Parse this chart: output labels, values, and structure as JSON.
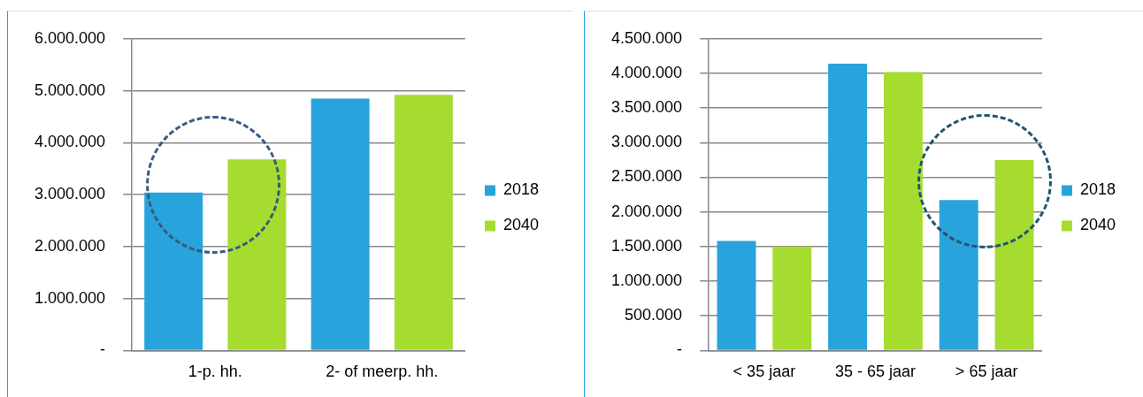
{
  "chart_data": [
    {
      "type": "bar",
      "categories": [
        "1-p. hh.",
        "2- of meerp. hh."
      ],
      "series": [
        {
          "name": "2018",
          "color": "#29a3dc",
          "values": [
            3040000,
            4850000
          ]
        },
        {
          "name": "2040",
          "color": "#a6dc30",
          "values": [
            3680000,
            4920000
          ]
        }
      ],
      "ylim": [
        0,
        6000000
      ],
      "yticks": [
        {
          "value": 0,
          "label": "-"
        },
        {
          "value": 1000000,
          "label": "1.000.000"
        },
        {
          "value": 2000000,
          "label": "2.000.000"
        },
        {
          "value": 3000000,
          "label": "3.000.000"
        },
        {
          "value": 4000000,
          "label": "4.000.000"
        },
        {
          "value": 5000000,
          "label": "5.000.000"
        },
        {
          "value": 6000000,
          "label": "6.000.000"
        }
      ],
      "grid": "y",
      "legend": "right"
    },
    {
      "type": "bar",
      "categories": [
        "< 35 jaar",
        "35 - 65 jaar",
        "> 65 jaar"
      ],
      "series": [
        {
          "name": "2018",
          "color": "#29a3dc",
          "values": [
            1580000,
            4140000,
            2170000
          ]
        },
        {
          "name": "2040",
          "color": "#a6dc30",
          "values": [
            1500000,
            4020000,
            2750000
          ]
        }
      ],
      "ylim": [
        0,
        4500000
      ],
      "yticks": [
        {
          "value": 0,
          "label": "-"
        },
        {
          "value": 500000,
          "label": "500.000"
        },
        {
          "value": 1000000,
          "label": "1.000.000"
        },
        {
          "value": 1500000,
          "label": "1.500.000"
        },
        {
          "value": 2000000,
          "label": "2.000.000"
        },
        {
          "value": 2500000,
          "label": "2.500.000"
        },
        {
          "value": 3000000,
          "label": "3.000.000"
        },
        {
          "value": 3500000,
          "label": "3.500.000"
        },
        {
          "value": 4000000,
          "label": "4.000.000"
        },
        {
          "value": 4500000,
          "label": "4.500.000"
        }
      ],
      "grid": "y",
      "legend": "right"
    }
  ]
}
